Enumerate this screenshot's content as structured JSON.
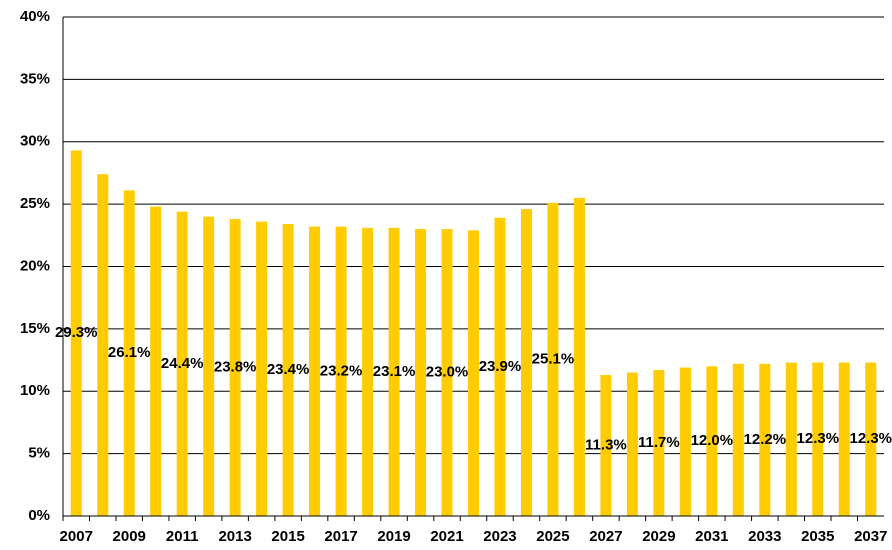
{
  "chart_data": {
    "type": "bar",
    "categories": [
      "2007",
      null,
      "2009",
      null,
      "2011",
      null,
      "2013",
      null,
      "2015",
      null,
      "2017",
      null,
      "2019",
      null,
      "2021",
      null,
      "2023",
      null,
      "2025",
      null,
      "2027",
      null,
      "2029",
      null,
      "2031",
      null,
      "2033",
      null,
      "2035",
      null,
      "2037"
    ],
    "values": [
      29.3,
      27.4,
      26.1,
      24.8,
      24.4,
      24.0,
      23.8,
      23.6,
      23.4,
      23.2,
      23.2,
      23.1,
      23.1,
      23.0,
      23.0,
      22.9,
      23.9,
      24.6,
      25.1,
      25.5,
      11.3,
      11.5,
      11.7,
      11.9,
      12.0,
      12.2,
      12.2,
      12.3,
      12.3,
      12.3,
      12.3
    ],
    "value_labels": [
      "29.3%",
      null,
      "26.1%",
      null,
      "24.4%",
      null,
      "23.8%",
      null,
      "23.4%",
      null,
      "23.2%",
      null,
      "23.1%",
      null,
      "23.0%",
      null,
      "23.9%",
      null,
      "25.1%",
      null,
      "11.3%",
      null,
      "11.7%",
      null,
      "12.0%",
      null,
      "12.2%",
      null,
      "12.3%",
      null,
      "12.3%"
    ],
    "color": "#ffcc00",
    "ylim": [
      0,
      40
    ],
    "yticks": [
      {
        "value": 0,
        "label": "0%"
      },
      {
        "value": 5,
        "label": "5%"
      },
      {
        "value": 10,
        "label": "10%"
      },
      {
        "value": 15,
        "label": "15%"
      },
      {
        "value": 20,
        "label": "20%"
      },
      {
        "value": 25,
        "label": "25%"
      },
      {
        "value": 30,
        "label": "30%"
      },
      {
        "value": 35,
        "label": "35%"
      },
      {
        "value": 40,
        "label": "40%"
      }
    ],
    "grid": true
  }
}
